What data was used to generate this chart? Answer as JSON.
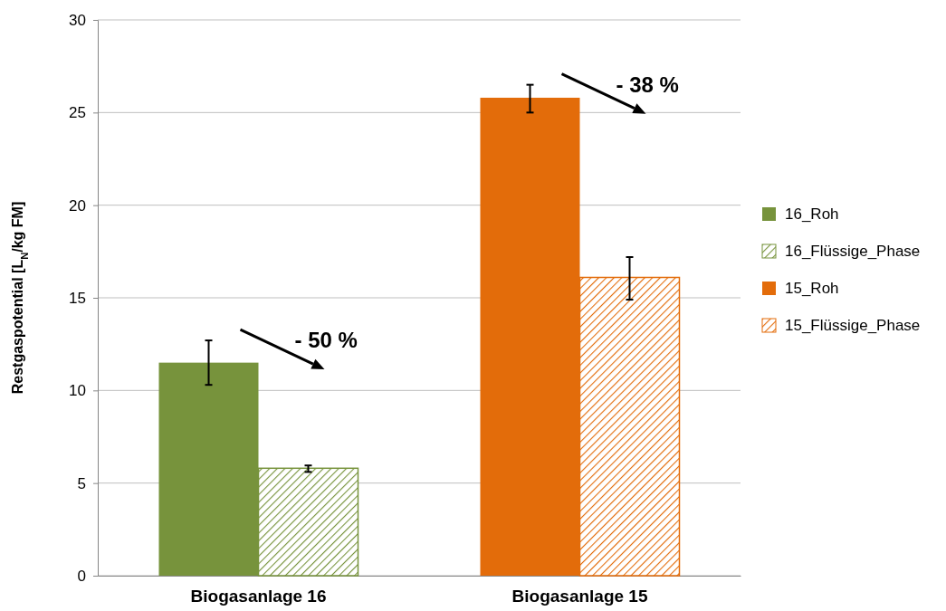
{
  "chart_data": {
    "type": "bar",
    "ylabel": "Restgaspotential [L$_{N}$/kg FM]",
    "categories": [
      "Biogasanlage 16",
      "Biogasanlage 15"
    ],
    "series": [
      {
        "name": "16_Roh",
        "color": "#77933c",
        "values": [
          11.5,
          null
        ],
        "errors": [
          [
            10.3,
            12.7
          ],
          null
        ]
      },
      {
        "name": "16_Flüssige_Phase",
        "color": "#77933c",
        "values": [
          5.8,
          null
        ],
        "errors": [
          [
            5.6,
            5.95
          ],
          null
        ]
      },
      {
        "name": "15_Roh",
        "color": "#e36c0a",
        "values": [
          null,
          25.8
        ],
        "errors": [
          null,
          [
            25.0,
            26.5
          ]
        ]
      },
      {
        "name": "15_Flüssige_Phase",
        "color": "#e36c0a",
        "values": [
          null,
          16.1
        ],
        "errors": [
          null,
          [
            14.9,
            17.2
          ]
        ]
      }
    ],
    "ylim": [
      0,
      30
    ],
    "yticks": [
      0,
      5,
      10,
      15,
      20,
      25,
      30
    ],
    "grid": "y",
    "legend": "right",
    "annotations": [
      "- 50 %",
      "- 38 %"
    ]
  }
}
